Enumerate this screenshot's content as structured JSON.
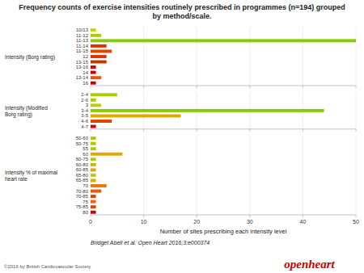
{
  "chart_data": [
    {
      "type": "bar",
      "orientation": "horizontal",
      "title": "Frequency counts of exercise intensities routinely prescribed in programmes (n=194) grouped\nby method/scale.",
      "ylabel": "Intensity (Borg rating)",
      "categories": [
        "16",
        "13-14",
        "14",
        "13-16",
        "13-15",
        "12",
        "11-15",
        "11-14",
        "11-13",
        "11-12",
        "10/13"
      ],
      "values": [
        1,
        2,
        1,
        1,
        3,
        3,
        4,
        3,
        50,
        2,
        1
      ],
      "colors": [
        "#cc0000",
        "#ee5500",
        "#cc0000",
        "#cc0000",
        "#cc3300",
        "#dd3300",
        "#dd4400",
        "#dd3300",
        "#88cc00",
        "#aacc00",
        "#cccc00"
      ],
      "xlim": [
        0,
        50
      ],
      "xticks": [
        0,
        10,
        20,
        30,
        40,
        50
      ],
      "grid": true,
      "tick_labels": "y"
    },
    {
      "type": "bar",
      "orientation": "horizontal",
      "ylabel": "Intensity (Modified Borg rating)",
      "categories": [
        "4-7",
        "4-6",
        "3-5",
        "3-4",
        "3",
        "2-6",
        "2-4"
      ],
      "values": [
        1,
        4,
        17,
        44,
        2,
        1,
        5
      ],
      "colors": [
        "#cc0000",
        "#dd4400",
        "#ddaa00",
        "#88cc00",
        "#bbcc00",
        "#aacc00",
        "#aacc00"
      ],
      "xlim": [
        0,
        50
      ],
      "xticks": [
        0,
        10,
        20,
        30,
        40,
        50
      ],
      "grid": true,
      "tick_labels": "y"
    },
    {
      "type": "bar",
      "orientation": "horizontal",
      "ylabel": "Intensity % of maximal heart rate",
      "xlabel": "Number of sites prescribing each intensity level",
      "categories": [
        "80",
        "75-85",
        "75",
        "70-85",
        "70-80",
        "70",
        "65-85",
        "65-80",
        "60-85",
        "60-80",
        "60-75",
        "60",
        "55",
        "50-75",
        "50-60"
      ],
      "values": [
        1,
        1,
        1,
        1,
        2,
        3,
        1,
        1,
        1,
        1,
        1,
        6,
        1,
        1,
        1
      ],
      "colors": [
        "#cc0000",
        "#dd4400",
        "#ee6600",
        "#dd4400",
        "#ee5500",
        "#ee7700",
        "#ddaa00",
        "#bbcc00",
        "#ddaa00",
        "#bbbb00",
        "#aacc00",
        "#ddaa00",
        "#aacc00",
        "#aacc00",
        "#aacc00"
      ],
      "xlim": [
        0,
        50
      ],
      "xticks": [
        0,
        10,
        20,
        30,
        40,
        50
      ],
      "grid": true,
      "annotations": [
        "Bridget Abell et al. Open Heart 2016;3:e000374",
        "©2016 by British Cardiovascular Society",
        "openheart"
      ]
    }
  ]
}
